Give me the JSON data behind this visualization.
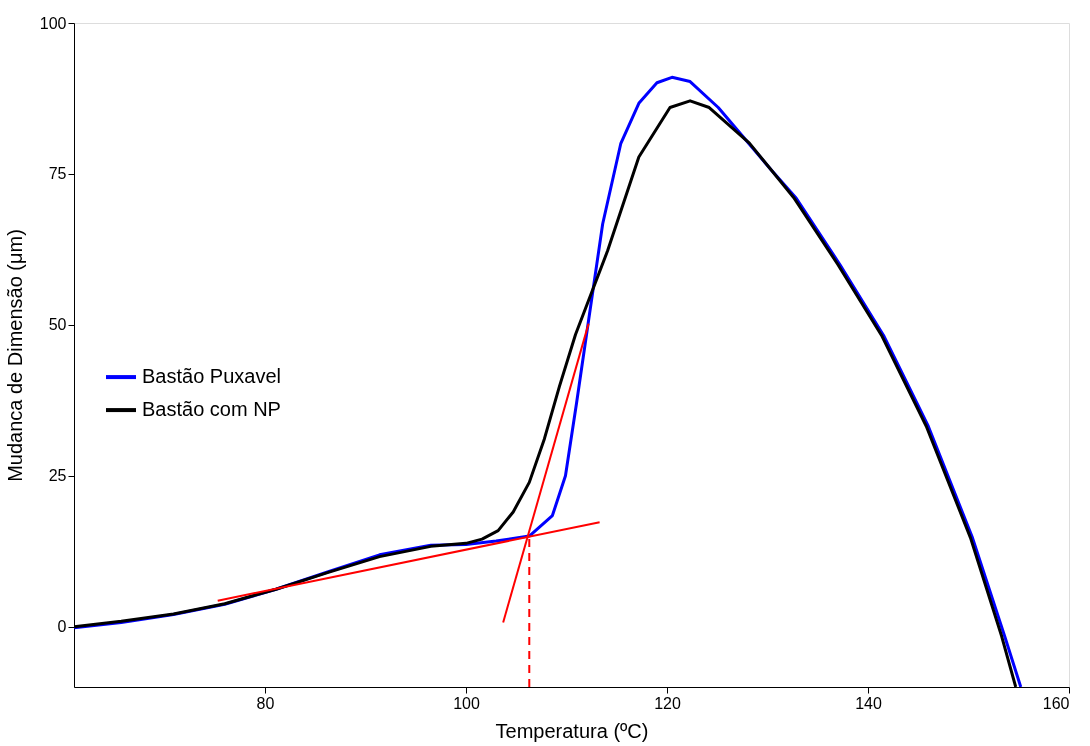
{
  "chart_data": {
    "type": "line",
    "xlabel": "Temperatura (ºC)",
    "ylabel": "Mudanca de Dimensão (μm)",
    "xlim": [
      61,
      160
    ],
    "ylim": [
      -10,
      100
    ],
    "xticks": [
      80,
      100,
      120,
      140,
      160
    ],
    "yticks": [
      0,
      25,
      50,
      75,
      100
    ],
    "grid": false,
    "legend": "left",
    "line_style": "solid",
    "marker": "none",
    "series": [
      {
        "name": "Bastão Puxavel",
        "color": "#0000ff",
        "x": [
          61,
          65.7,
          70.9,
          76,
          81.1,
          86.3,
          91.4,
          96.5,
          100,
          103,
          106.3,
          108.6,
          109.9,
          111,
          112.1,
          113.6,
          115.4,
          117.2,
          119,
          120.5,
          122.3,
          125.1,
          130.4,
          132.8,
          137.2,
          141.6,
          146,
          150.4,
          153.6,
          155.2
        ],
        "values": [
          -0.2,
          0.7,
          2.0,
          3.7,
          6.2,
          9.1,
          11.9,
          13.5,
          13.6,
          14.2,
          15,
          18.4,
          25,
          37,
          49.6,
          66.7,
          80,
          86.7,
          90.1,
          91,
          90.3,
          86,
          75.6,
          71.1,
          60,
          48.1,
          33.2,
          14.7,
          -1.6,
          -10
        ]
      },
      {
        "name": "Bastão com NP",
        "color": "#000000",
        "x": [
          61,
          65.7,
          70.9,
          76,
          81.1,
          86.3,
          91.4,
          96.5,
          100,
          101.6,
          103.2,
          104.7,
          106.3,
          107.8,
          109.3,
          110.9,
          114.1,
          117.2,
          120.3,
          122.3,
          124.2,
          128.2,
          132.6,
          137,
          141.4,
          145.8,
          150.2,
          153.3,
          154.7
        ],
        "values": [
          0,
          0.9,
          2.1,
          3.8,
          6.2,
          9.0,
          11.6,
          13.3,
          13.8,
          14.5,
          15.9,
          19,
          23.9,
          31.1,
          39.8,
          48.4,
          62.3,
          77.8,
          86,
          87.1,
          86,
          80.1,
          71.1,
          60,
          48.1,
          33.2,
          14.7,
          -1.6,
          -10
        ]
      },
      {
        "type": "line",
        "color": "#ff0000",
        "x": [
          75.3,
          113.3
        ],
        "values": [
          4.3,
          17.3
        ]
      },
      {
        "type": "line",
        "color": "#ff0000",
        "x": [
          103.7,
          112.2
        ],
        "values": [
          0.7,
          50.2
        ]
      },
      {
        "type": "line",
        "color": "#ff0000",
        "line_style": "dashed",
        "x": [
          106.3,
          106.3
        ],
        "values": [
          -10,
          15
        ]
      }
    ]
  }
}
